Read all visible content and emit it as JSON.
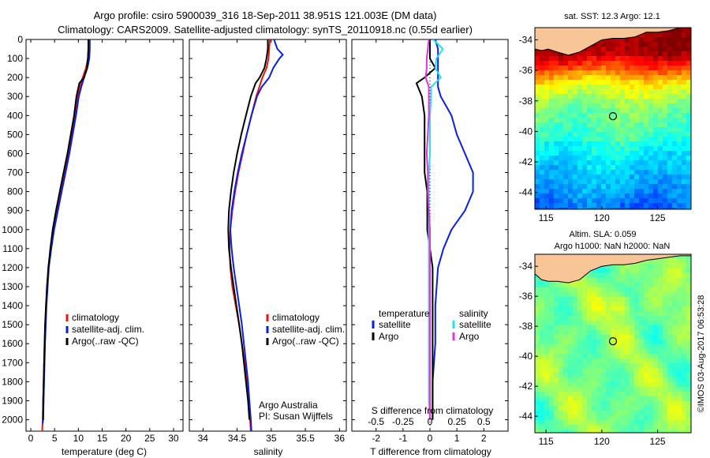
{
  "figure": {
    "title_line1": "Argo profile: csiro 5900039_316 18-Sep-2011 38.951S 121.003E (DM data)",
    "title_line2": "Climatology: CARS2009. Satellite-adjusted climatology: synTS_20110918.nc (0.55d earlier)",
    "credit": "©IMOS 03-Aug-2017 06:53:28",
    "attribution_line1": "Argo Australia",
    "attribution_line2": "PI: Susan Wijffels"
  },
  "colors": {
    "climatology": "#e8160c",
    "satellite": "#0a1ee6",
    "argo": "#000000",
    "salinity_satellite": "#20e0e8",
    "salinity_argo": "#e830e0",
    "land": "#f8c596"
  },
  "legend_profiles": [
    "climatology",
    "satellite-adj. clim.",
    "Argo(..raw -QC)"
  ],
  "legend_diff": {
    "temperature_header": "temperature",
    "salinity_header": "salinity",
    "items": [
      "satellite",
      "Argo",
      "satellite",
      "Argo"
    ]
  },
  "maps": {
    "sst_title": "sat. SST: 12.3 Argo: 12.1",
    "sla_title_line1": "Altim. SLA: 0.059",
    "sla_title_line2": "Argo h1000: NaN h2000: NaN",
    "x_ticks": [
      "115",
      "120",
      "125"
    ],
    "y_ticks": [
      "-34",
      "-36",
      "-38",
      "-40",
      "-42",
      "-44"
    ],
    "lon_range": [
      114,
      128
    ],
    "lat_range": [
      -45.1,
      -33.2
    ],
    "argo_position": {
      "lon": 121.0,
      "lat": -39.0
    },
    "color_scale": "jet",
    "sst_field": "mostly green-yellow at -38 to -41, red-orange north of -37, cyan-blue south of -41",
    "sla_field": "mostly green with yellow-orange eddies"
  },
  "chart_data": [
    {
      "type": "line",
      "xlabel": "temperature (deg C)",
      "ylabel": "",
      "xlim": [
        -1,
        32
      ],
      "ylim": [
        2060,
        0
      ],
      "x_ticks": [
        "0",
        "5",
        "10",
        "15",
        "20",
        "25",
        "30"
      ],
      "y_ticks": [
        "0",
        "100",
        "200",
        "300",
        "400",
        "500",
        "600",
        "700",
        "800",
        "900",
        "1000",
        "1100",
        "1200",
        "1300",
        "1400",
        "1500",
        "1600",
        "1700",
        "1800",
        "1900",
        "2000"
      ],
      "series": [
        {
          "name": "climatology",
          "depth": [
            0,
            50,
            100,
            150,
            200,
            250,
            300,
            400,
            500,
            600,
            700,
            800,
            900,
            1000,
            1100,
            1200,
            1400,
            1600,
            1800,
            2000,
            2060
          ],
          "values": [
            12.2,
            12.1,
            12.0,
            11.6,
            10.9,
            10.3,
            9.9,
            9.3,
            8.6,
            7.9,
            7.1,
            6.3,
            5.5,
            4.8,
            4.2,
            3.7,
            3.2,
            2.9,
            2.7,
            2.5,
            2.4
          ]
        },
        {
          "name": "satellite-adj. clim.",
          "depth": [
            0,
            50,
            100,
            150,
            200,
            250,
            300,
            400,
            500,
            600,
            700,
            800,
            900,
            1000,
            1100,
            1200,
            1400,
            1600,
            1800,
            2000,
            2020
          ],
          "values": [
            12.4,
            12.4,
            12.3,
            11.9,
            11.2,
            10.6,
            10.1,
            9.5,
            8.8,
            8.1,
            7.3,
            6.5,
            5.7,
            4.9,
            4.3,
            3.8,
            3.3,
            3.0,
            2.8,
            2.6,
            2.5
          ]
        },
        {
          "name": "Argo(..raw -QC)",
          "depth": [
            0,
            50,
            100,
            150,
            200,
            230,
            300,
            400,
            500,
            600,
            700,
            800,
            900,
            1000,
            1100,
            1200,
            1300,
            1400,
            1500,
            1600,
            1700,
            1800,
            1900,
            2000
          ],
          "values": [
            12.1,
            12.1,
            12.0,
            11.8,
            11.2,
            10.2,
            9.6,
            9.1,
            8.4,
            7.7,
            6.9,
            6.1,
            5.3,
            4.6,
            4.1,
            3.7,
            3.4,
            3.2,
            3.0,
            2.9,
            2.8,
            2.7,
            2.6,
            2.6
          ]
        }
      ]
    },
    {
      "type": "line",
      "xlabel": "salinity",
      "ylabel": "",
      "xlim": [
        33.8,
        36.1
      ],
      "ylim": [
        2060,
        0
      ],
      "x_ticks": [
        "34",
        "34.5",
        "35",
        "35.5",
        "36"
      ],
      "series": [
        {
          "name": "climatology",
          "depth": [
            0,
            50,
            100,
            150,
            200,
            300,
            400,
            500,
            600,
            700,
            800,
            900,
            1000,
            1100,
            1200,
            1300,
            1400,
            1500,
            1600,
            1700,
            1800,
            1900,
            2000,
            2060
          ],
          "values": [
            34.98,
            34.97,
            34.96,
            34.93,
            34.87,
            34.78,
            34.71,
            34.64,
            34.58,
            34.52,
            34.47,
            34.43,
            34.4,
            34.39,
            34.4,
            34.43,
            34.48,
            34.53,
            34.57,
            34.61,
            34.64,
            34.67,
            34.69,
            34.7
          ]
        },
        {
          "name": "satellite-adj. clim.",
          "depth": [
            0,
            50,
            80,
            100,
            150,
            200,
            250,
            300,
            400,
            500,
            600,
            700,
            800,
            900,
            1000,
            1100,
            1200,
            1300,
            1400,
            1500,
            1600,
            1700,
            1800,
            1900,
            2000,
            2060
          ],
          "values": [
            35.04,
            35.09,
            35.17,
            35.12,
            35.03,
            34.97,
            34.86,
            34.79,
            34.71,
            34.64,
            34.57,
            34.51,
            34.46,
            34.42,
            34.4,
            34.42,
            34.45,
            34.49,
            34.53,
            34.57,
            34.6,
            34.63,
            34.66,
            34.68,
            34.7,
            34.71
          ]
        },
        {
          "name": "Argo(..raw -QC)",
          "depth": [
            0,
            50,
            100,
            150,
            200,
            230,
            300,
            400,
            500,
            600,
            700,
            800,
            900,
            1000,
            1100,
            1200,
            1300,
            1400,
            1500,
            1600,
            1700,
            1800,
            1900,
            2000
          ],
          "values": [
            34.95,
            34.95,
            34.93,
            34.9,
            34.83,
            34.77,
            34.7,
            34.63,
            34.56,
            34.5,
            34.45,
            34.41,
            34.38,
            34.37,
            34.38,
            34.41,
            34.45,
            34.49,
            34.53,
            34.57,
            34.6,
            34.63,
            34.66,
            34.68
          ]
        }
      ]
    },
    {
      "type": "line",
      "xlabel": "T difference from climatology",
      "x2label": "S difference from climatology",
      "xlim": [
        -2.9,
        2.9
      ],
      "ylim": [
        2060,
        0
      ],
      "x_ticks": [
        "-2",
        "-1",
        "0",
        "1",
        "2"
      ],
      "x2_ticks": [
        "-0.5",
        "-0.25",
        "0",
        "0.25",
        "0.5"
      ],
      "x2_ticks_values": [
        -0.5,
        -0.25,
        0,
        0.25,
        0.5
      ],
      "series": [
        {
          "name": "satellite",
          "quantity": "temperature",
          "depth": [
            0,
            50,
            100,
            150,
            200,
            250,
            300,
            400,
            500,
            600,
            700,
            800,
            900,
            1000,
            1100,
            1200,
            1400,
            1600,
            1800,
            2000
          ],
          "values": [
            0.2,
            0.3,
            0.3,
            0.3,
            0.3,
            0.3,
            0.4,
            0.8,
            1.0,
            1.3,
            1.6,
            1.6,
            1.3,
            0.8,
            0.5,
            0.3,
            0.2,
            0.2,
            0.1,
            0.1
          ]
        },
        {
          "name": "Argo",
          "quantity": "temperature",
          "depth": [
            0,
            50,
            100,
            150,
            200,
            230,
            300,
            400,
            500,
            600,
            700,
            800,
            900,
            1000,
            1200,
            1400,
            1600,
            1800,
            2000
          ],
          "values": [
            0.0,
            0.0,
            0.0,
            0.2,
            -0.2,
            -0.5,
            -0.3,
            -0.2,
            -0.2,
            -0.2,
            -0.2,
            -0.1,
            -0.1,
            -0.1,
            0.1,
            0.1,
            0.1,
            0.1,
            0.1
          ]
        },
        {
          "name": "satellite",
          "quantity": "salinity",
          "depth": [
            0,
            50,
            100,
            150,
            200,
            250,
            300,
            400,
            500,
            600,
            700,
            800,
            900,
            1000,
            1200,
            1400,
            1600,
            1800,
            1900,
            2000
          ],
          "values": [
            0.03,
            0.12,
            0.06,
            0.05,
            0.1,
            0.01,
            0.01,
            0.0,
            0.0,
            0.0,
            -0.01,
            -0.01,
            -0.01,
            -0.01,
            -0.01,
            -0.01,
            -0.01,
            -0.01,
            -0.01,
            0.0
          ]
        },
        {
          "name": "Argo",
          "quantity": "salinity",
          "depth": [
            0,
            50,
            100,
            150,
            200,
            250,
            300,
            400,
            500,
            600,
            700,
            800,
            900,
            1000,
            1200,
            1400,
            1600,
            1800,
            2000
          ],
          "values": [
            -0.01,
            -0.02,
            -0.03,
            -0.03,
            -0.04,
            -0.01,
            -0.01,
            -0.01,
            -0.02,
            -0.03,
            -0.02,
            -0.02,
            -0.01,
            0.0,
            0.0,
            0.0,
            0.0,
            0.0,
            0.0
          ]
        }
      ]
    }
  ]
}
